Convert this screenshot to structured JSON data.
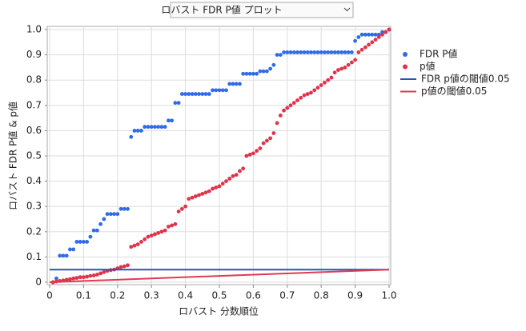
{
  "chart_data": {
    "type": "scatter",
    "title": "ロバスト FDR P値 プロット",
    "x_label": "ロバスト 分数順位",
    "y_label": "ロバスト FDR P値 & p値",
    "xlim": [
      0,
      1
    ],
    "ylim": [
      0,
      1
    ],
    "xticks": [
      0,
      0.1,
      0.2,
      0.3,
      0.4,
      0.5,
      0.6,
      0.7,
      0.8,
      0.9,
      {
        "value": 1,
        "label": "1.0"
      }
    ],
    "yticks": [
      0,
      0.1,
      0.2,
      0.3,
      0.4,
      0.5,
      0.6,
      0.7,
      0.8,
      0.9,
      {
        "value": 1,
        "label": "1.0"
      }
    ],
    "grid": true,
    "x": [
      0.01,
      0.02,
      0.03,
      0.04,
      0.05,
      0.06,
      0.07,
      0.08,
      0.09,
      0.1,
      0.11,
      0.12,
      0.13,
      0.14,
      0.15,
      0.16,
      0.17,
      0.18,
      0.19,
      0.2,
      0.21,
      0.22,
      0.23,
      0.24,
      0.25,
      0.26,
      0.27,
      0.28,
      0.29,
      0.3,
      0.31,
      0.32,
      0.33,
      0.34,
      0.35,
      0.36,
      0.37,
      0.38,
      0.39,
      0.4,
      0.41,
      0.42,
      0.43,
      0.44,
      0.45,
      0.46,
      0.47,
      0.48,
      0.49,
      0.5,
      0.51,
      0.52,
      0.53,
      0.54,
      0.55,
      0.56,
      0.57,
      0.58,
      0.59,
      0.6,
      0.61,
      0.62,
      0.63,
      0.64,
      0.65,
      0.66,
      0.67,
      0.68,
      0.69,
      0.7,
      0.71,
      0.72,
      0.73,
      0.74,
      0.75,
      0.76,
      0.77,
      0.78,
      0.79,
      0.8,
      0.81,
      0.82,
      0.83,
      0.84,
      0.85,
      0.86,
      0.87,
      0.88,
      0.89,
      0.9,
      0.91,
      0.92,
      0.93,
      0.94,
      0.95,
      0.96,
      0.97,
      0.98,
      0.99,
      1
    ],
    "series": [
      {
        "name": "FDR P値",
        "color": "#2f6be8",
        "values": [
          0,
          0.015,
          0.105,
          0.105,
          0.105,
          0.13,
          0.13,
          0.16,
          0.16,
          0.16,
          0.16,
          0.18,
          0.205,
          0.205,
          0.23,
          0.25,
          0.27,
          0.27,
          0.27,
          0.27,
          0.29,
          0.29,
          0.29,
          0.575,
          0.6,
          0.6,
          0.6,
          0.615,
          0.615,
          0.615,
          0.615,
          0.615,
          0.615,
          0.615,
          0.64,
          0.64,
          0.71,
          0.71,
          0.745,
          0.745,
          0.745,
          0.745,
          0.745,
          0.745,
          0.745,
          0.745,
          0.745,
          0.76,
          0.76,
          0.76,
          0.76,
          0.76,
          0.785,
          0.785,
          0.785,
          0.785,
          0.825,
          0.825,
          0.825,
          0.825,
          0.825,
          0.835,
          0.835,
          0.835,
          0.845,
          0.86,
          0.9,
          0.9,
          0.91,
          0.91,
          0.91,
          0.91,
          0.91,
          0.91,
          0.91,
          0.91,
          0.91,
          0.91,
          0.91,
          0.91,
          0.91,
          0.91,
          0.91,
          0.91,
          0.91,
          0.91,
          0.91,
          0.91,
          0.91,
          0.955,
          0.97,
          0.98,
          0.98,
          0.98,
          0.98,
          0.98,
          0.98,
          0.99,
          0.99,
          1
        ]
      },
      {
        "name": "p値",
        "color": "#e0334a",
        "values": [
          0,
          0.003,
          0.005,
          0.007,
          0.01,
          0.012,
          0.015,
          0.017,
          0.02,
          0.02,
          0.022,
          0.025,
          0.027,
          0.03,
          0.035,
          0.04,
          0.045,
          0.048,
          0.05,
          0.055,
          0.06,
          0.063,
          0.067,
          0.14,
          0.145,
          0.15,
          0.16,
          0.17,
          0.18,
          0.185,
          0.19,
          0.195,
          0.2,
          0.205,
          0.22,
          0.225,
          0.23,
          0.28,
          0.29,
          0.3,
          0.33,
          0.335,
          0.34,
          0.345,
          0.35,
          0.355,
          0.36,
          0.37,
          0.375,
          0.38,
          0.39,
          0.4,
          0.41,
          0.42,
          0.425,
          0.44,
          0.45,
          0.5,
          0.505,
          0.51,
          0.52,
          0.53,
          0.55,
          0.56,
          0.57,
          0.59,
          0.63,
          0.66,
          0.68,
          0.69,
          0.7,
          0.71,
          0.72,
          0.73,
          0.74,
          0.745,
          0.75,
          0.76,
          0.77,
          0.78,
          0.79,
          0.8,
          0.81,
          0.83,
          0.84,
          0.845,
          0.85,
          0.86,
          0.87,
          0.88,
          0.91,
          0.92,
          0.93,
          0.94,
          0.95,
          0.96,
          0.97,
          0.98,
          0.99,
          1
        ]
      },
      {
        "name": "FDR p値の閾値0.05",
        "color": "#2257b8",
        "line": true,
        "x": [
          0,
          1
        ],
        "values": [
          0.05,
          0.05
        ]
      },
      {
        "name": "p値の閾値0.05",
        "color": "#e03a52",
        "line": true,
        "x": [
          0,
          1
        ],
        "values": [
          0,
          0.05
        ]
      }
    ]
  }
}
